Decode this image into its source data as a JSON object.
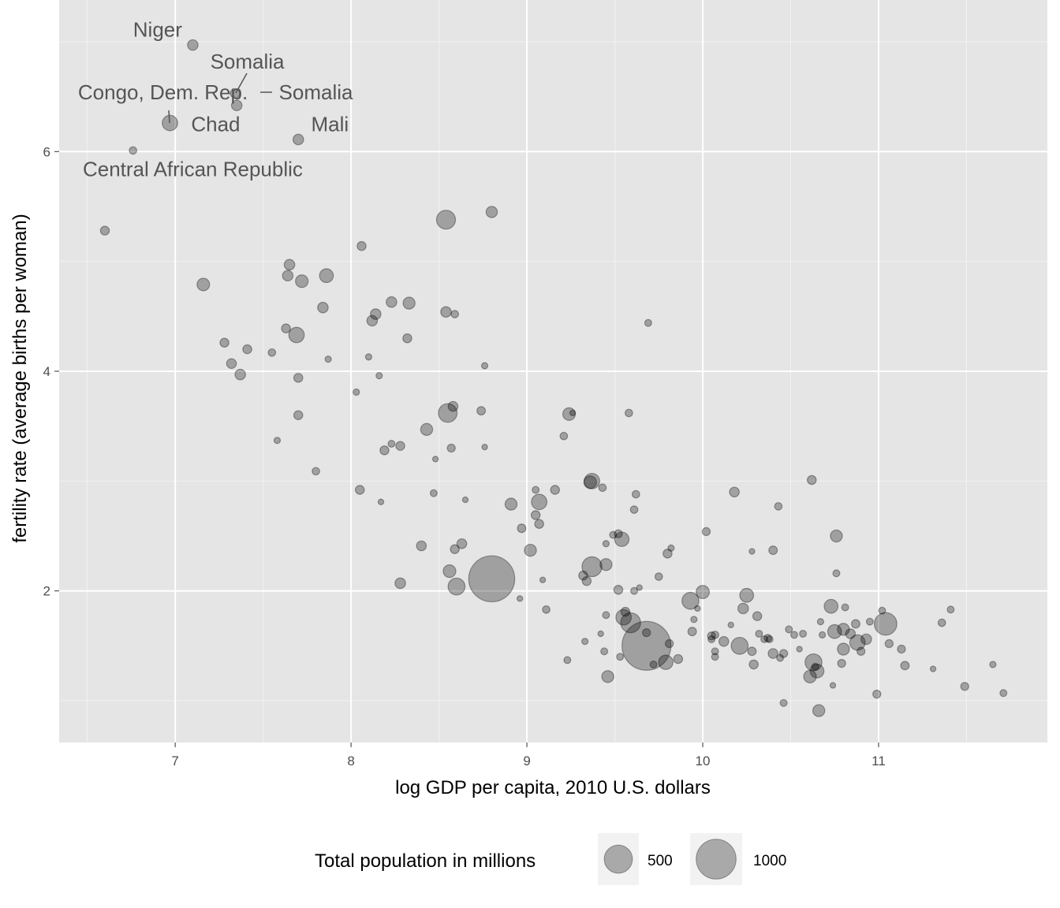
{
  "chart_data": {
    "type": "scatter",
    "xlabel": "log GDP per capita, 2010 U.S. dollars",
    "ylabel": "fertility rate (average births per woman)",
    "xlim": [
      6.34,
      11.96
    ],
    "ylim": [
      0.62,
      7.38
    ],
    "x_ticks": [
      "7",
      "8",
      "9",
      "10",
      "11"
    ],
    "y_ticks": [
      "2",
      "4",
      "6"
    ],
    "grid": true,
    "point_color": "#000000",
    "panel_background": "#e5e5e5",
    "legend": {
      "title": "Total population in millions",
      "placement": "bottom",
      "entries": [
        {
          "label": "500",
          "size": 500
        },
        {
          "label": "1000",
          "size": 1000
        }
      ]
    },
    "annotations": [
      {
        "text": "Niger",
        "x": 6.9,
        "y": 7.11
      },
      {
        "text": "Somalia",
        "x": 7.41,
        "y": 6.82
      },
      {
        "text": "Congo, Dem. Rep.",
        "x": 6.93,
        "y": 6.54
      },
      {
        "text": "Somalia",
        "x": 7.8,
        "y": 6.54
      },
      {
        "text": "Chad",
        "x": 7.23,
        "y": 6.25
      },
      {
        "text": "Mali",
        "x": 7.88,
        "y": 6.25
      },
      {
        "text": "Central African Republic",
        "x": 7.1,
        "y": 5.84
      }
    ],
    "points_columns": [
      "log_gdp",
      "fertility",
      "population_millions"
    ],
    "points": [
      [
        7.1,
        6.97,
        70
      ],
      [
        7.34,
        6.53,
        55
      ],
      [
        7.35,
        6.42,
        70
      ],
      [
        6.97,
        6.26,
        150
      ],
      [
        7.7,
        6.11,
        70
      ],
      [
        6.76,
        6.01,
        35
      ],
      [
        6.6,
        5.28,
        50
      ],
      [
        7.16,
        4.79,
        100
      ],
      [
        8.54,
        5.38,
        225
      ],
      [
        8.8,
        5.45,
        80
      ],
      [
        8.06,
        5.14,
        50
      ],
      [
        7.65,
        4.97,
        70
      ],
      [
        7.64,
        4.87,
        70
      ],
      [
        7.72,
        4.82,
        100
      ],
      [
        7.86,
        4.87,
        120
      ],
      [
        7.84,
        4.58,
        70
      ],
      [
        8.23,
        4.63,
        70
      ],
      [
        8.33,
        4.62,
        90
      ],
      [
        8.14,
        4.52,
        70
      ],
      [
        8.12,
        4.46,
        70
      ],
      [
        8.54,
        4.54,
        70
      ],
      [
        8.59,
        4.52,
        35
      ],
      [
        7.63,
        4.39,
        50
      ],
      [
        7.69,
        4.33,
        150
      ],
      [
        7.28,
        4.26,
        50
      ],
      [
        7.41,
        4.2,
        50
      ],
      [
        7.55,
        4.17,
        35
      ],
      [
        8.32,
        4.3,
        50
      ],
      [
        7.32,
        4.07,
        60
      ],
      [
        7.37,
        3.97,
        70
      ],
      [
        7.87,
        4.11,
        25
      ],
      [
        8.1,
        4.13,
        25
      ],
      [
        8.16,
        3.96,
        25
      ],
      [
        7.7,
        3.94,
        50
      ],
      [
        8.76,
        4.05,
        25
      ],
      [
        9.69,
        4.44,
        30
      ],
      [
        8.03,
        3.81,
        25
      ],
      [
        8.55,
        3.62,
        220
      ],
      [
        8.58,
        3.68,
        60
      ],
      [
        8.74,
        3.64,
        45
      ],
      [
        9.24,
        3.61,
        100
      ],
      [
        9.26,
        3.62,
        20
      ],
      [
        9.58,
        3.62,
        35
      ],
      [
        7.7,
        3.6,
        50
      ],
      [
        8.43,
        3.47,
        90
      ],
      [
        7.58,
        3.37,
        25
      ],
      [
        8.23,
        3.34,
        30
      ],
      [
        8.28,
        3.32,
        50
      ],
      [
        8.19,
        3.28,
        50
      ],
      [
        8.57,
        3.3,
        40
      ],
      [
        8.76,
        3.31,
        20
      ],
      [
        9.21,
        3.41,
        35
      ],
      [
        8.48,
        3.2,
        20
      ],
      [
        7.8,
        3.09,
        35
      ],
      [
        8.05,
        2.92,
        50
      ],
      [
        8.47,
        2.89,
        30
      ],
      [
        8.17,
        2.81,
        20
      ],
      [
        8.65,
        2.83,
        20
      ],
      [
        9.37,
        3.0,
        150
      ],
      [
        9.36,
        2.99,
        100
      ],
      [
        9.43,
        2.94,
        35
      ],
      [
        9.05,
        2.92,
        30
      ],
      [
        9.16,
        2.92,
        50
      ],
      [
        9.07,
        2.81,
        150
      ],
      [
        9.05,
        2.69,
        50
      ],
      [
        9.07,
        2.61,
        50
      ],
      [
        8.91,
        2.79,
        90
      ],
      [
        8.97,
        2.57,
        45
      ],
      [
        9.62,
        2.88,
        35
      ],
      [
        9.61,
        2.74,
        35
      ],
      [
        10.18,
        2.9,
        60
      ],
      [
        10.62,
        3.01,
        50
      ],
      [
        10.43,
        2.77,
        35
      ],
      [
        10.02,
        2.54,
        40
      ],
      [
        10.76,
        2.5,
        90
      ],
      [
        8.63,
        2.43,
        60
      ],
      [
        8.59,
        2.38,
        50
      ],
      [
        8.4,
        2.41,
        60
      ],
      [
        9.02,
        2.37,
        90
      ],
      [
        9.45,
        2.43,
        25
      ],
      [
        9.49,
        2.51,
        30
      ],
      [
        9.52,
        2.52,
        40
      ],
      [
        9.54,
        2.47,
        130
      ],
      [
        9.82,
        2.39,
        25
      ],
      [
        9.8,
        2.34,
        50
      ],
      [
        10.28,
        2.36,
        20
      ],
      [
        10.4,
        2.37,
        45
      ],
      [
        8.56,
        2.18,
        100
      ],
      [
        8.8,
        2.11,
        1330
      ],
      [
        9.37,
        2.22,
        250
      ],
      [
        9.45,
        2.24,
        90
      ],
      [
        9.32,
        2.14,
        50
      ],
      [
        9.34,
        2.09,
        50
      ],
      [
        8.28,
        2.07,
        70
      ],
      [
        8.6,
        2.04,
        180
      ],
      [
        9.09,
        2.1,
        20
      ],
      [
        9.75,
        2.13,
        35
      ],
      [
        10.76,
        2.16,
        30
      ],
      [
        9.52,
        2.01,
        50
      ],
      [
        9.61,
        2.0,
        30
      ],
      [
        9.64,
        2.03,
        20
      ],
      [
        10.0,
        1.99,
        110
      ],
      [
        9.93,
        1.91,
        180
      ],
      [
        10.25,
        1.96,
        120
      ],
      [
        8.96,
        1.93,
        20
      ],
      [
        9.11,
        1.83,
        35
      ],
      [
        10.23,
        1.84,
        70
      ],
      [
        10.31,
        1.77,
        50
      ],
      [
        9.97,
        1.84,
        20
      ],
      [
        9.95,
        1.74,
        25
      ],
      [
        10.73,
        1.86,
        120
      ],
      [
        10.81,
        1.85,
        30
      ],
      [
        11.02,
        1.82,
        30
      ],
      [
        11.41,
        1.83,
        30
      ],
      [
        11.36,
        1.71,
        35
      ],
      [
        11.04,
        1.7,
        320
      ],
      [
        10.67,
        1.72,
        25
      ],
      [
        10.87,
        1.7,
        45
      ],
      [
        10.95,
        1.72,
        30
      ],
      [
        10.8,
        1.65,
        90
      ],
      [
        10.75,
        1.63,
        120
      ],
      [
        10.84,
        1.61,
        60
      ],
      [
        10.93,
        1.56,
        70
      ],
      [
        10.88,
        1.53,
        150
      ],
      [
        11.06,
        1.52,
        40
      ],
      [
        11.13,
        1.47,
        40
      ],
      [
        10.9,
        1.45,
        40
      ],
      [
        10.8,
        1.47,
        90
      ],
      [
        9.45,
        1.78,
        30
      ],
      [
        9.56,
        1.81,
        50
      ],
      [
        9.55,
        1.76,
        150
      ],
      [
        9.59,
        1.71,
        250
      ],
      [
        9.68,
        1.5,
        1500
      ],
      [
        9.68,
        1.62,
        40
      ],
      [
        9.81,
        1.52,
        40
      ],
      [
        9.86,
        1.38,
        50
      ],
      [
        9.79,
        1.35,
        130
      ],
      [
        9.72,
        1.33,
        30
      ],
      [
        9.42,
        1.61,
        20
      ],
      [
        9.33,
        1.54,
        25
      ],
      [
        9.44,
        1.45,
        30
      ],
      [
        9.53,
        1.4,
        30
      ],
      [
        9.46,
        1.22,
        90
      ],
      [
        9.23,
        1.37,
        30
      ],
      [
        9.94,
        1.63,
        45
      ],
      [
        10.05,
        1.59,
        40
      ],
      [
        10.07,
        1.6,
        35
      ],
      [
        10.05,
        1.56,
        30
      ],
      [
        10.12,
        1.54,
        60
      ],
      [
        10.16,
        1.69,
        20
      ],
      [
        10.21,
        1.5,
        180
      ],
      [
        10.07,
        1.45,
        30
      ],
      [
        10.07,
        1.4,
        30
      ],
      [
        10.28,
        1.45,
        45
      ],
      [
        10.29,
        1.33,
        50
      ],
      [
        10.32,
        1.61,
        30
      ],
      [
        10.35,
        1.56,
        30
      ],
      [
        10.37,
        1.57,
        35
      ],
      [
        10.38,
        1.56,
        30
      ],
      [
        10.49,
        1.65,
        30
      ],
      [
        10.52,
        1.6,
        30
      ],
      [
        10.57,
        1.61,
        30
      ],
      [
        10.4,
        1.43,
        60
      ],
      [
        10.46,
        1.43,
        40
      ],
      [
        10.44,
        1.39,
        30
      ],
      [
        10.55,
        1.47,
        20
      ],
      [
        10.68,
        1.6,
        25
      ],
      [
        10.63,
        1.35,
        180
      ],
      [
        10.64,
        1.31,
        30
      ],
      [
        10.65,
        1.27,
        120
      ],
      [
        10.61,
        1.22,
        100
      ],
      [
        10.79,
        1.34,
        40
      ],
      [
        11.15,
        1.32,
        45
      ],
      [
        11.31,
        1.29,
        20
      ],
      [
        11.65,
        1.33,
        25
      ],
      [
        11.49,
        1.13,
        40
      ],
      [
        11.71,
        1.07,
        30
      ],
      [
        10.99,
        1.06,
        40
      ],
      [
        10.74,
        1.14,
        20
      ],
      [
        10.46,
        0.98,
        30
      ],
      [
        10.66,
        0.91,
        90
      ]
    ]
  }
}
